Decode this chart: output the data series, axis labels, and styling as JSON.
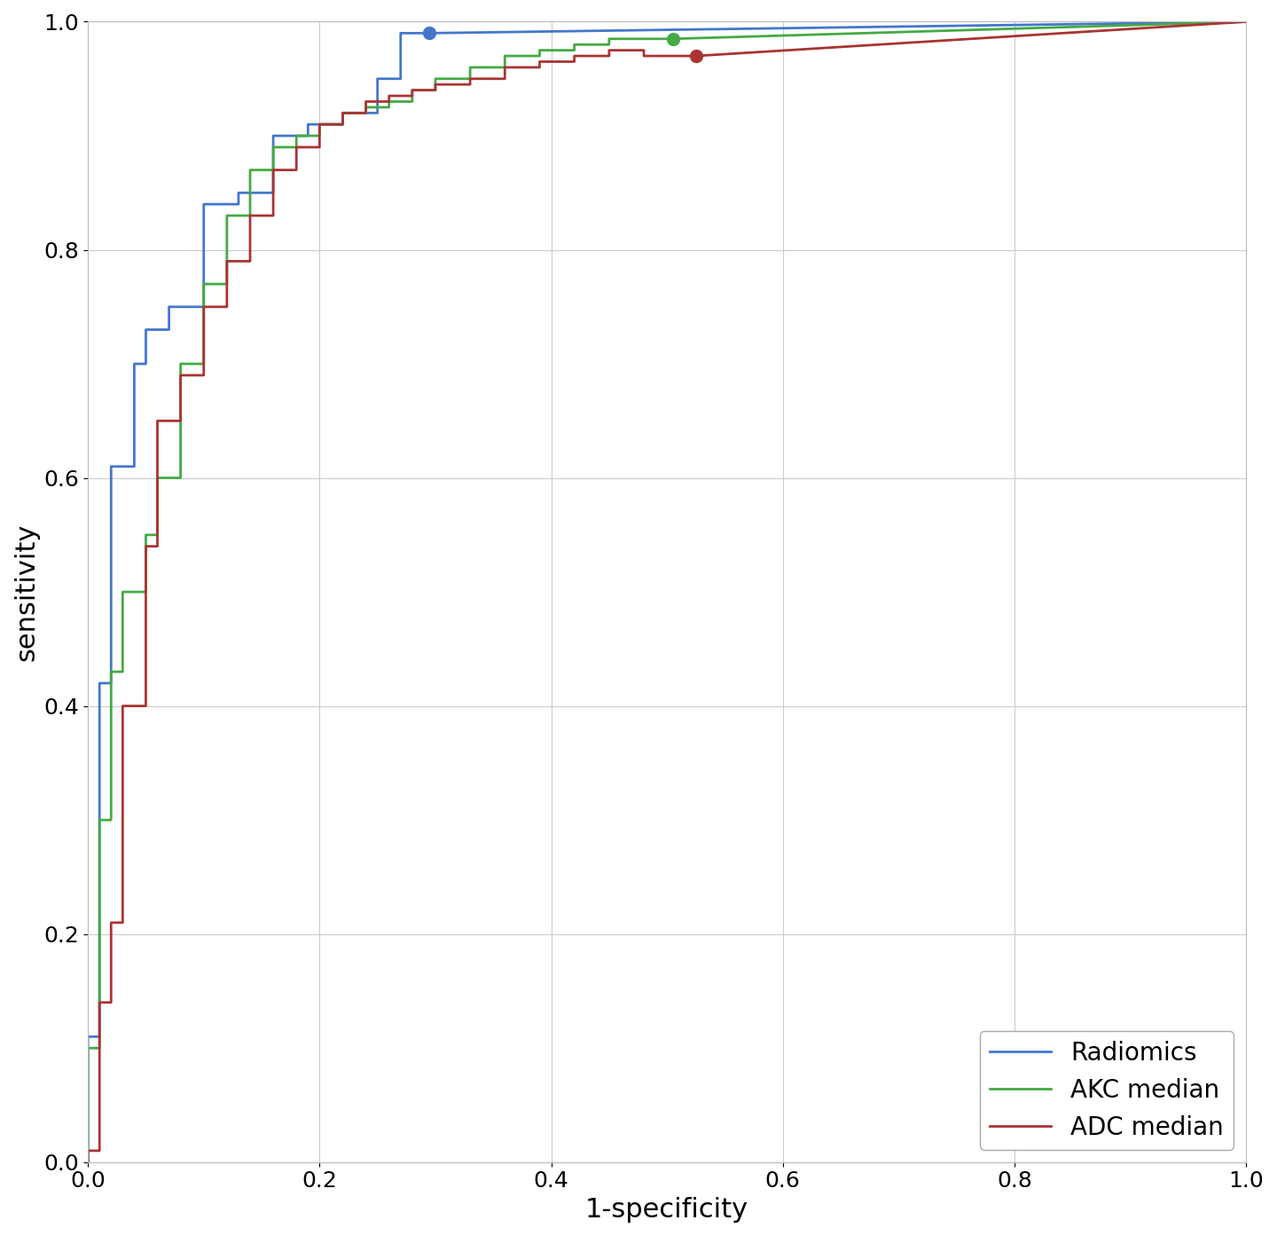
{
  "title": "",
  "xlabel": "1-specificity",
  "ylabel": "sensitivity",
  "xlim": [
    0.0,
    1.0
  ],
  "ylim": [
    0.0,
    1.0
  ],
  "background_color": "#ffffff",
  "grid_color": "#cccccc",
  "radiomics_color": "#4477cc",
  "akc_color": "#44aa44",
  "adc_color": "#aa3333",
  "radiomics_marker": [
    0.295,
    0.99
  ],
  "akc_marker": [
    0.505,
    0.985
  ],
  "adc_marker": [
    0.525,
    0.97
  ],
  "legend_labels": [
    "Radiomics",
    "AKC median",
    "ADC median"
  ],
  "legend_loc": "lower right",
  "fontsize_label": 22,
  "fontsize_tick": 18,
  "fontsize_legend": 20,
  "linewidth": 2.0,
  "marker_size": 10,
  "rad_x": [
    0.0,
    0.0,
    0.01,
    0.01,
    0.02,
    0.02,
    0.04,
    0.04,
    0.05,
    0.05,
    0.07,
    0.07,
    0.1,
    0.1,
    0.13,
    0.13,
    0.16,
    0.16,
    0.19,
    0.19,
    0.22,
    0.22,
    0.25,
    0.25,
    0.27,
    0.27,
    0.295,
    1.0
  ],
  "rad_y": [
    0.0,
    0.11,
    0.11,
    0.42,
    0.42,
    0.61,
    0.61,
    0.7,
    0.7,
    0.73,
    0.73,
    0.75,
    0.75,
    0.84,
    0.84,
    0.85,
    0.85,
    0.9,
    0.9,
    0.91,
    0.91,
    0.92,
    0.92,
    0.95,
    0.95,
    0.99,
    0.99,
    1.0
  ],
  "akc_x": [
    0.0,
    0.0,
    0.01,
    0.01,
    0.02,
    0.02,
    0.03,
    0.03,
    0.05,
    0.05,
    0.06,
    0.06,
    0.08,
    0.08,
    0.1,
    0.1,
    0.12,
    0.12,
    0.14,
    0.14,
    0.16,
    0.16,
    0.18,
    0.18,
    0.2,
    0.2,
    0.22,
    0.22,
    0.24,
    0.24,
    0.26,
    0.26,
    0.28,
    0.28,
    0.3,
    0.3,
    0.33,
    0.33,
    0.36,
    0.36,
    0.39,
    0.39,
    0.42,
    0.42,
    0.45,
    0.45,
    0.48,
    0.48,
    0.505,
    1.0
  ],
  "akc_y": [
    0.0,
    0.1,
    0.1,
    0.3,
    0.3,
    0.43,
    0.43,
    0.5,
    0.5,
    0.55,
    0.55,
    0.6,
    0.6,
    0.7,
    0.7,
    0.77,
    0.77,
    0.83,
    0.83,
    0.87,
    0.87,
    0.89,
    0.89,
    0.9,
    0.9,
    0.91,
    0.91,
    0.92,
    0.92,
    0.925,
    0.925,
    0.93,
    0.93,
    0.94,
    0.94,
    0.95,
    0.95,
    0.96,
    0.96,
    0.97,
    0.97,
    0.975,
    0.975,
    0.98,
    0.98,
    0.985,
    0.985,
    0.985,
    0.985,
    1.0
  ],
  "adc_x": [
    0.0,
    0.0,
    0.01,
    0.01,
    0.02,
    0.02,
    0.03,
    0.03,
    0.05,
    0.05,
    0.06,
    0.06,
    0.08,
    0.08,
    0.1,
    0.1,
    0.12,
    0.12,
    0.14,
    0.14,
    0.16,
    0.16,
    0.18,
    0.18,
    0.2,
    0.2,
    0.22,
    0.22,
    0.24,
    0.24,
    0.26,
    0.26,
    0.28,
    0.28,
    0.3,
    0.3,
    0.33,
    0.33,
    0.36,
    0.36,
    0.39,
    0.39,
    0.42,
    0.42,
    0.45,
    0.45,
    0.48,
    0.48,
    0.5,
    0.5,
    0.525,
    1.0
  ],
  "adc_y": [
    0.0,
    0.01,
    0.01,
    0.14,
    0.14,
    0.21,
    0.21,
    0.4,
    0.4,
    0.54,
    0.54,
    0.65,
    0.65,
    0.69,
    0.69,
    0.75,
    0.75,
    0.79,
    0.79,
    0.83,
    0.83,
    0.87,
    0.87,
    0.89,
    0.89,
    0.91,
    0.91,
    0.92,
    0.92,
    0.93,
    0.93,
    0.935,
    0.935,
    0.94,
    0.94,
    0.945,
    0.945,
    0.95,
    0.95,
    0.96,
    0.96,
    0.965,
    0.965,
    0.97,
    0.97,
    0.975,
    0.975,
    0.97,
    0.97,
    0.97,
    0.97,
    1.0
  ]
}
